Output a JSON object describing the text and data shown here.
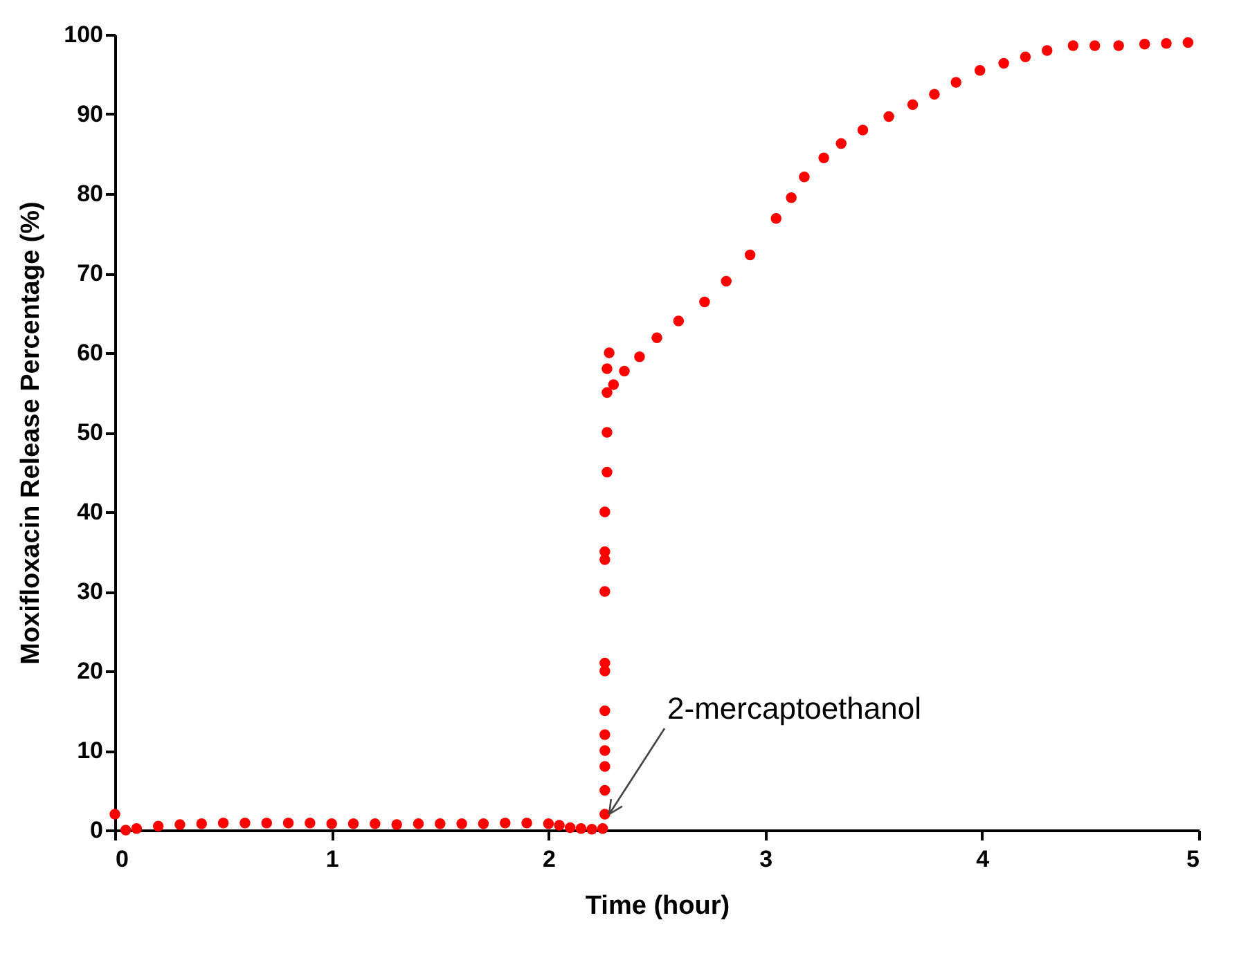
{
  "chart_data": {
    "type": "scatter",
    "xlabel": "Time (hour)",
    "ylabel": "Moxifloxacin Release Percentage (%)",
    "xlim": [
      0,
      5
    ],
    "ylim": [
      0,
      100
    ],
    "xticks": [
      0,
      1,
      2,
      3,
      4,
      5
    ],
    "yticks": [
      0,
      10,
      20,
      30,
      40,
      50,
      60,
      70,
      80,
      90,
      100
    ],
    "grid": false,
    "marker": "circle",
    "annotations": [
      {
        "text": "2-mercaptoethanol",
        "x": 2.28,
        "y": 2
      }
    ],
    "series": [
      {
        "color": "#ff0000",
        "x": [
          0,
          0.05,
          0.1,
          0.2,
          0.3,
          0.4,
          0.5,
          0.6,
          0.7,
          0.8,
          0.9,
          1.0,
          1.1,
          1.2,
          1.3,
          1.4,
          1.5,
          1.6,
          1.7,
          1.8,
          1.9,
          2.0,
          2.05,
          2.1,
          2.15,
          2.2,
          2.25,
          2.26,
          2.26,
          2.26,
          2.26,
          2.26,
          2.26,
          2.26,
          2.26,
          2.26,
          2.26,
          2.26,
          2.26,
          2.27,
          2.27,
          2.27,
          2.27,
          2.28,
          2.3,
          2.35,
          2.42,
          2.5,
          2.6,
          2.72,
          2.82,
          2.93,
          3.05,
          3.12,
          3.18,
          3.27,
          3.35,
          3.45,
          3.57,
          3.68,
          3.78,
          3.88,
          3.99,
          4.1,
          4.2,
          4.3,
          4.42,
          4.52,
          4.63,
          4.75,
          4.85,
          4.95
        ],
        "values": [
          2,
          0,
          0.2,
          0.5,
          0.7,
          0.8,
          0.9,
          0.9,
          0.9,
          0.9,
          0.9,
          0.8,
          0.8,
          0.8,
          0.7,
          0.8,
          0.8,
          0.8,
          0.8,
          0.9,
          0.9,
          0.8,
          0.6,
          0.3,
          0.2,
          0.1,
          0.2,
          2,
          5,
          8,
          10,
          12,
          15,
          20,
          21,
          30,
          34,
          35,
          40,
          45,
          50,
          55,
          58,
          60,
          56,
          57.7,
          59.5,
          61.9,
          64,
          66.4,
          69,
          72.3,
          76.9,
          79.5,
          82.1,
          84.5,
          86.3,
          88,
          89.7,
          91.2,
          92.5,
          94,
          95.5,
          96.4,
          97.2,
          98,
          98.6,
          98.6,
          98.6,
          98.8,
          98.9,
          99
        ]
      }
    ]
  }
}
